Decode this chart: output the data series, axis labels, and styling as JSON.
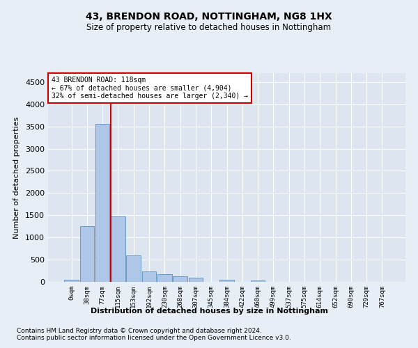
{
  "title1": "43, BRENDON ROAD, NOTTINGHAM, NG8 1HX",
  "title2": "Size of property relative to detached houses in Nottingham",
  "xlabel": "Distribution of detached houses by size in Nottingham",
  "ylabel": "Number of detached properties",
  "footnote1": "Contains HM Land Registry data © Crown copyright and database right 2024.",
  "footnote2": "Contains public sector information licensed under the Open Government Licence v3.0.",
  "bin_labels": [
    "0sqm",
    "38sqm",
    "77sqm",
    "115sqm",
    "153sqm",
    "192sqm",
    "230sqm",
    "268sqm",
    "307sqm",
    "345sqm",
    "384sqm",
    "422sqm",
    "460sqm",
    "499sqm",
    "537sqm",
    "575sqm",
    "614sqm",
    "652sqm",
    "690sqm",
    "729sqm",
    "767sqm"
  ],
  "bar_values": [
    50,
    1250,
    3550,
    1480,
    590,
    240,
    170,
    120,
    90,
    0,
    40,
    0,
    30,
    0,
    0,
    0,
    0,
    0,
    0,
    0,
    0
  ],
  "bar_color": "#aec6e8",
  "bar_edge_color": "#5a8fc0",
  "vline_color": "#cc0000",
  "ylim": [
    0,
    4700
  ],
  "yticks": [
    0,
    500,
    1000,
    1500,
    2000,
    2500,
    3000,
    3500,
    4000,
    4500
  ],
  "annotation_line1": "43 BRENDON ROAD: 118sqm",
  "annotation_line2": "← 67% of detached houses are smaller (4,904)",
  "annotation_line3": "32% of semi-detached houses are larger (2,340) →",
  "annotation_box_color": "#ffffff",
  "annotation_box_edge": "#cc0000",
  "bg_color": "#e8eef5",
  "plot_bg_color": "#dde6f0"
}
